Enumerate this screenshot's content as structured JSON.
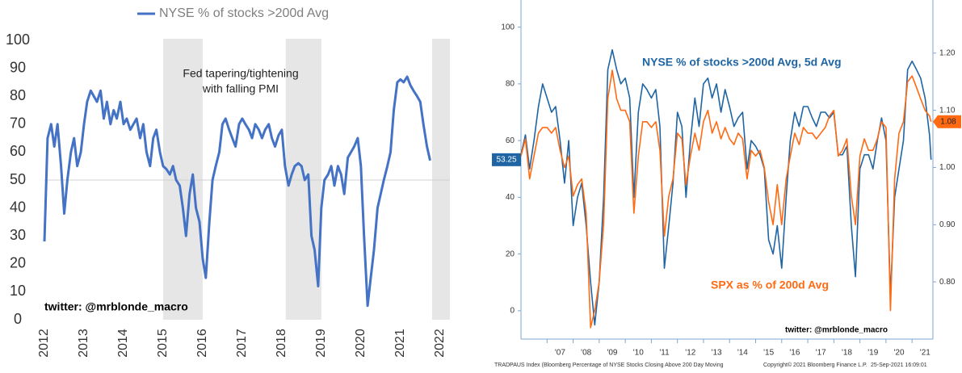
{
  "chart_data": [
    {
      "type": "line",
      "xlim": [
        2012,
        2022.25
      ],
      "xticks": [
        2012,
        2013,
        2014,
        2015,
        2016,
        2017,
        2018,
        2019,
        2020,
        2021,
        2022
      ],
      "ylim": [
        0,
        100
      ],
      "yticks": [
        0,
        10,
        20,
        30,
        40,
        50,
        60,
        70,
        80,
        90,
        100
      ],
      "reference_line": 50,
      "shaded_regions": [
        [
          2015,
          2016
        ],
        [
          2018.1,
          2019
        ],
        [
          2021.8,
          2022.25
        ]
      ],
      "annotation": [
        "Fed tapering/tightening",
        "with falling PMI"
      ],
      "credit": "twitter: @mrblonde_macro",
      "x": [
        2012,
        2012.08,
        2012.17,
        2012.25,
        2012.33,
        2012.42,
        2012.5,
        2012.58,
        2012.67,
        2012.75,
        2012.83,
        2012.92,
        2013,
        2013.08,
        2013.17,
        2013.25,
        2013.33,
        2013.42,
        2013.5,
        2013.58,
        2013.67,
        2013.75,
        2013.83,
        2013.92,
        2014,
        2014.08,
        2014.17,
        2014.25,
        2014.33,
        2014.42,
        2014.5,
        2014.58,
        2014.67,
        2014.75,
        2014.83,
        2014.92,
        2015,
        2015.08,
        2015.17,
        2015.25,
        2015.33,
        2015.42,
        2015.5,
        2015.58,
        2015.67,
        2015.75,
        2015.83,
        2015.92,
        2016,
        2016.08,
        2016.17,
        2016.25,
        2016.33,
        2016.42,
        2016.5,
        2016.58,
        2016.67,
        2016.75,
        2016.83,
        2016.92,
        2017,
        2017.08,
        2017.17,
        2017.25,
        2017.33,
        2017.42,
        2017.5,
        2017.58,
        2017.67,
        2017.75,
        2017.83,
        2017.92,
        2018,
        2018.08,
        2018.17,
        2018.25,
        2018.33,
        2018.42,
        2018.5,
        2018.58,
        2018.67,
        2018.75,
        2018.83,
        2018.92,
        2019,
        2019.08,
        2019.17,
        2019.25,
        2019.33,
        2019.42,
        2019.5,
        2019.58,
        2019.67,
        2019.75,
        2019.83,
        2019.92,
        2020,
        2020.08,
        2020.17,
        2020.25,
        2020.33,
        2020.42,
        2020.5,
        2020.58,
        2020.67,
        2020.75,
        2020.83,
        2020.92,
        2021,
        2021.08,
        2021.17,
        2021.25,
        2021.33,
        2021.42,
        2021.5,
        2021.58,
        2021.67,
        2021.75
      ],
      "series": [
        {
          "name": "NYSE % of stocks >200d Avg",
          "color": "#4472c4",
          "values": [
            28,
            65,
            70,
            62,
            70,
            55,
            38,
            50,
            60,
            65,
            55,
            60,
            70,
            78,
            82,
            80,
            78,
            82,
            72,
            78,
            70,
            75,
            72,
            78,
            70,
            72,
            68,
            70,
            72,
            65,
            70,
            60,
            55,
            65,
            68,
            60,
            55,
            54,
            52,
            55,
            50,
            48,
            40,
            30,
            45,
            52,
            40,
            35,
            22,
            15,
            35,
            50,
            55,
            60,
            70,
            72,
            68,
            65,
            62,
            70,
            72,
            70,
            68,
            65,
            70,
            68,
            65,
            68,
            70,
            65,
            62,
            66,
            68,
            55,
            48,
            52,
            55,
            56,
            55,
            50,
            52,
            30,
            25,
            12,
            40,
            50,
            52,
            55,
            48,
            55,
            52,
            45,
            58,
            60,
            62,
            65,
            55,
            30,
            5,
            15,
            25,
            40,
            45,
            50,
            55,
            60,
            75,
            85,
            86,
            85,
            87,
            84,
            82,
            80,
            78,
            70,
            62,
            57
          ]
        }
      ]
    },
    {
      "type": "line",
      "xlim": [
        2006,
        2021.8
      ],
      "xticks": [
        {
          "value": 2007,
          "label": "'07"
        },
        {
          "value": 2008,
          "label": "'08"
        },
        {
          "value": 2009,
          "label": "'09"
        },
        {
          "value": 2010,
          "label": "'10"
        },
        {
          "value": 2011,
          "label": "'11"
        },
        {
          "value": 2012,
          "label": "'12"
        },
        {
          "value": 2013,
          "label": "'13"
        },
        {
          "value": 2014,
          "label": "'14"
        },
        {
          "value": 2015,
          "label": "'15"
        },
        {
          "value": 2016,
          "label": "'16"
        },
        {
          "value": 2017,
          "label": "'17"
        },
        {
          "value": 2018,
          "label": "'18"
        },
        {
          "value": 2019,
          "label": "'19"
        },
        {
          "value": 2020,
          "label": "'20"
        },
        {
          "value": 2021,
          "label": "'21"
        }
      ],
      "ylim": [
        -10,
        109
      ],
      "yticks": [
        0,
        20,
        40,
        60,
        80,
        100
      ],
      "y2lim": [
        0.7,
        1.29
      ],
      "y2ticks": [
        {
          "value": 0.8,
          "label": "0.80"
        },
        {
          "value": 0.9,
          "label": "0.90"
        },
        {
          "value": 1.0,
          "label": "1.00"
        },
        {
          "value": 1.1,
          "label": "1.10"
        },
        {
          "value": 1.2,
          "label": "1.20"
        }
      ],
      "credit": "twitter: @mrblonde_macro",
      "footer": [
        "TRADPAUS Index (Bloomberg Percentage of NYSE Stocks Closing Above 200 Day Moving",
        "Copyright© 2021 Bloomberg Finance L.P.",
        "25-Sep-2021 16:09:01"
      ],
      "x": [
        2006,
        2006.17,
        2006.33,
        2006.5,
        2006.67,
        2006.83,
        2007,
        2007.17,
        2007.33,
        2007.5,
        2007.67,
        2007.83,
        2008,
        2008.17,
        2008.33,
        2008.5,
        2008.67,
        2008.83,
        2009,
        2009.17,
        2009.33,
        2009.5,
        2009.67,
        2009.83,
        2010,
        2010.17,
        2010.33,
        2010.5,
        2010.67,
        2010.83,
        2011,
        2011.17,
        2011.33,
        2011.5,
        2011.67,
        2011.83,
        2012,
        2012.17,
        2012.33,
        2012.5,
        2012.67,
        2012.83,
        2013,
        2013.17,
        2013.33,
        2013.5,
        2013.67,
        2013.83,
        2014,
        2014.17,
        2014.33,
        2014.5,
        2014.67,
        2014.83,
        2015,
        2015.17,
        2015.33,
        2015.5,
        2015.67,
        2015.83,
        2016,
        2016.17,
        2016.33,
        2016.5,
        2016.67,
        2016.83,
        2017,
        2017.17,
        2017.33,
        2017.5,
        2017.67,
        2017.83,
        2018,
        2018.17,
        2018.33,
        2018.5,
        2018.67,
        2018.83,
        2019,
        2019.17,
        2019.33,
        2019.5,
        2019.67,
        2019.83,
        2020,
        2020.17,
        2020.33,
        2020.5,
        2020.67,
        2020.83,
        2021,
        2021.17,
        2021.33,
        2021.5,
        2021.67,
        2021.73
      ],
      "series": [
        {
          "name": "NYSE % of stocks >200d Avg, 5d Avg",
          "color": "#1f65a3",
          "values": [
            55,
            62,
            50,
            60,
            72,
            80,
            75,
            70,
            72,
            60,
            45,
            60,
            30,
            40,
            45,
            30,
            10,
            -5,
            10,
            40,
            85,
            92,
            85,
            80,
            82,
            75,
            40,
            70,
            80,
            78,
            75,
            78,
            65,
            15,
            30,
            45,
            70,
            65,
            40,
            60,
            75,
            65,
            80,
            82,
            75,
            80,
            70,
            78,
            72,
            65,
            68,
            70,
            50,
            60,
            58,
            55,
            50,
            25,
            20,
            30,
            15,
            40,
            60,
            70,
            65,
            72,
            72,
            68,
            65,
            70,
            70,
            68,
            70,
            55,
            55,
            58,
            30,
            12,
            50,
            55,
            55,
            50,
            60,
            68,
            60,
            5,
            40,
            50,
            60,
            85,
            88,
            85,
            82,
            75,
            62,
            53.25
          ]
        },
        {
          "name": "SPX as % of 200d Avg",
          "color": "#ff6a13",
          "axis": "y2",
          "values": [
            1.02,
            1.05,
            0.98,
            1.02,
            1.06,
            1.07,
            1.07,
            1.06,
            1.07,
            1.03,
            1.0,
            1.02,
            0.95,
            0.97,
            0.98,
            0.92,
            0.72,
            0.75,
            0.8,
            0.9,
            1.12,
            1.17,
            1.12,
            1.1,
            1.1,
            1.08,
            0.92,
            1.02,
            1.08,
            1.08,
            1.07,
            1.08,
            1.03,
            0.88,
            0.95,
            0.98,
            1.06,
            1.05,
            0.97,
            1.02,
            1.06,
            1.03,
            1.08,
            1.1,
            1.06,
            1.08,
            1.05,
            1.07,
            1.05,
            1.04,
            1.06,
            1.05,
            0.98,
            1.03,
            1.02,
            1.03,
            1.0,
            0.94,
            0.9,
            0.97,
            0.9,
            0.98,
            1.02,
            1.06,
            1.04,
            1.07,
            1.06,
            1.06,
            1.05,
            1.06,
            1.07,
            1.09,
            1.1,
            1.02,
            1.03,
            1.05,
            0.95,
            0.9,
            1.02,
            1.05,
            1.03,
            1.03,
            1.05,
            1.08,
            1.07,
            0.75,
            0.98,
            1.06,
            1.08,
            1.15,
            1.16,
            1.14,
            1.12,
            1.1,
            1.09,
            1.08
          ]
        }
      ]
    }
  ]
}
